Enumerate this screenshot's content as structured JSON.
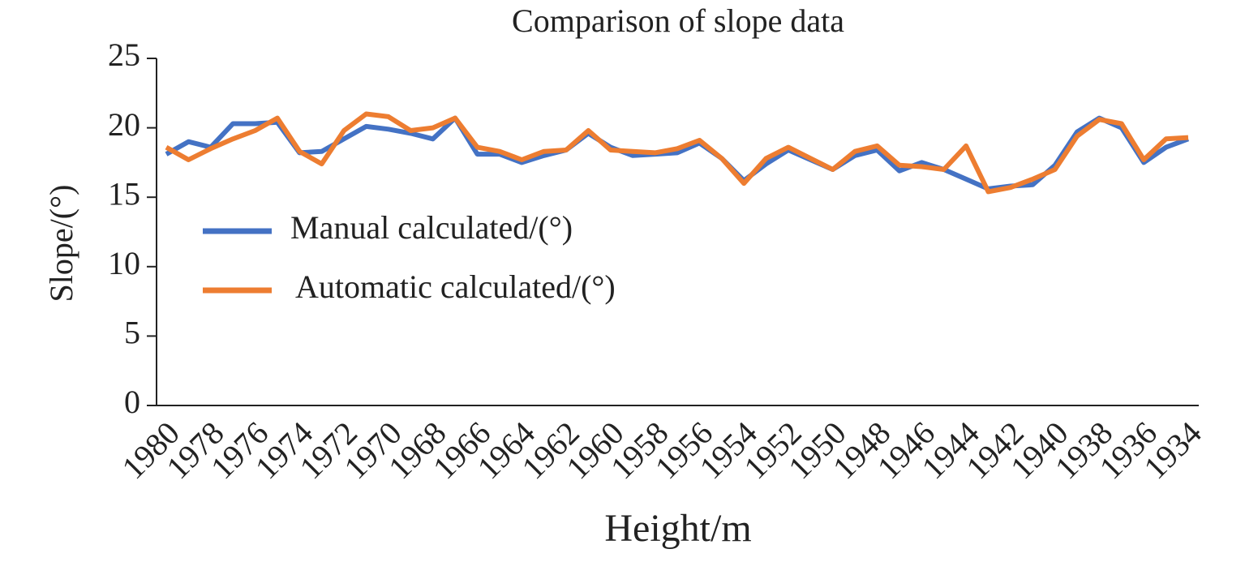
{
  "chart_data": {
    "type": "line",
    "title": "Comparison of slope data",
    "x_label": "Height/m",
    "y_label": "Slope/(°)",
    "categories": [
      "1980",
      null,
      "1978",
      null,
      "1976",
      null,
      "1974",
      null,
      "1972",
      null,
      "1970",
      null,
      "1968",
      null,
      "1966",
      null,
      "1964",
      null,
      "1962",
      null,
      "1960",
      null,
      "1958",
      null,
      "1956",
      null,
      "1954",
      null,
      "1952",
      null,
      "1950",
      null,
      "1948",
      null,
      "1946",
      null,
      "1944",
      null,
      "1942",
      null,
      "1940",
      null,
      "1938",
      null,
      "1936",
      null,
      "1934"
    ],
    "series": [
      {
        "name": "Manual calculated/(°)",
        "color": "#4472c4",
        "values": [
          18.1,
          19.0,
          18.6,
          20.3,
          20.3,
          20.4,
          18.2,
          18.3,
          19.2,
          20.1,
          19.9,
          19.6,
          19.2,
          20.7,
          18.1,
          18.1,
          17.5,
          18.0,
          18.4,
          19.6,
          18.6,
          18.0,
          18.1,
          18.2,
          18.9,
          17.8,
          16.2,
          17.4,
          18.4,
          17.7,
          17.0,
          18.0,
          18.4,
          16.9,
          17.5,
          17.0,
          16.3,
          15.6,
          15.8,
          15.9,
          17.3,
          19.7,
          20.7,
          20.0,
          17.5,
          18.6,
          19.2
        ]
      },
      {
        "name": "Automatic calculated/(°)",
        "color": "#ed7d31",
        "values": [
          18.6,
          17.7,
          18.5,
          19.2,
          19.8,
          20.7,
          18.3,
          17.4,
          19.8,
          21.0,
          20.8,
          19.8,
          20.0,
          20.7,
          18.6,
          18.3,
          17.7,
          18.3,
          18.4,
          19.8,
          18.4,
          18.3,
          18.2,
          18.5,
          19.1,
          17.8,
          16.0,
          17.8,
          18.6,
          17.8,
          17.0,
          18.3,
          18.7,
          17.3,
          17.2,
          17.0,
          18.7,
          15.4,
          15.7,
          16.3,
          17.0,
          19.4,
          20.6,
          20.3,
          17.7,
          19.2,
          19.3
        ]
      }
    ],
    "ylim": [
      0,
      25
    ],
    "yticks": [
      0,
      5,
      10,
      15,
      20,
      25
    ],
    "grid": false,
    "legend": "left"
  }
}
